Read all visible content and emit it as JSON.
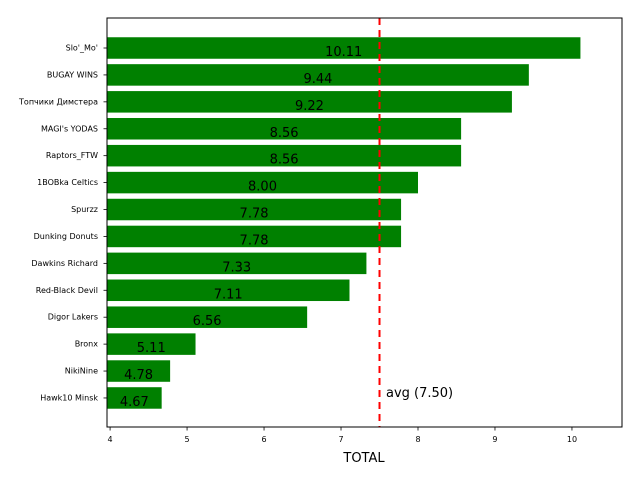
{
  "chart_data": {
    "type": "bar",
    "orientation": "horizontal",
    "categories": [
      "Slo'_Mo'",
      "BUGAY WINS",
      "Топчики Димстера",
      "MAGI's YODAS",
      "Raptors_FTW",
      "1BOBka Celtics",
      "Spurzz",
      "Dunking Donuts",
      "Dawkins Richard",
      "Red-Black Devil",
      "Digor Lakers",
      "Bronx",
      "NikiNine",
      "Hawk10 Minsk"
    ],
    "values": [
      10.11,
      9.44,
      9.22,
      8.56,
      8.56,
      8.0,
      7.78,
      7.78,
      7.33,
      7.11,
      6.56,
      5.11,
      4.78,
      4.67
    ],
    "data_labels": [
      "10.11",
      "9.44",
      "9.22",
      "8.56",
      "8.56",
      "8.00",
      "7.78",
      "7.78",
      "7.33",
      "7.11",
      "6.56",
      "5.11",
      "4.78",
      "4.67"
    ],
    "xlabel": "TOTAL",
    "ylabel": "",
    "title": "",
    "xlim": [
      3.96,
      10.65
    ],
    "xticks": [
      4,
      5,
      6,
      7,
      8,
      9,
      10
    ],
    "xtick_labels": [
      "4",
      "5",
      "6",
      "7",
      "8",
      "9",
      "10"
    ],
    "bar_color": "#008000",
    "grid": false,
    "reference_line": {
      "value": 7.5,
      "label": "avg (7.50)",
      "color": "#ff0000",
      "style": "dashed"
    }
  }
}
